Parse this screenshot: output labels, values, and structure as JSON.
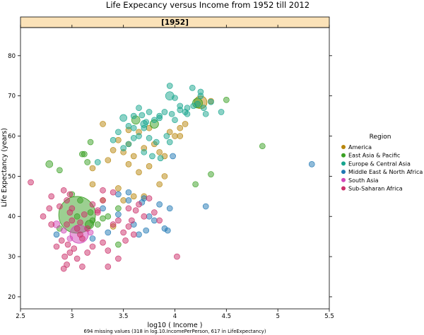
{
  "chart_data": {
    "type": "scatter",
    "title": "Life Expecancy versus Income from 1952 till 2012",
    "strip_label": "[1952]",
    "xlabel": "log10 ( Income )",
    "ylabel": "Life Expectancy (years)",
    "footnote": "694 missing values (318 in log.10.IncomePerPerson, 617 in LifeExpectancy)",
    "xlim": [
      2.5,
      5.5
    ],
    "ylim": [
      17,
      87
    ],
    "x_ticks": [
      2.5,
      3,
      3.5,
      4,
      4.5,
      5,
      5.5
    ],
    "x_tick_labels": [
      "2.5",
      "3",
      "3.5",
      "4",
      "4.5",
      "5",
      "5.5"
    ],
    "y_ticks": [
      20,
      30,
      40,
      50,
      60,
      70,
      80
    ],
    "y_tick_labels": [
      "20",
      "30",
      "40",
      "50",
      "60",
      "70",
      "80"
    ],
    "grid": false,
    "legend_title": "Region",
    "legend_position": "right",
    "colors": {
      "strip": "#fbe2b8",
      "point_alpha": 0.5
    },
    "series": [
      {
        "name": "America",
        "color": "#b8860b",
        "points": [
          [
            3.3,
            63.0
          ],
          [
            3.55,
            61.5
          ],
          [
            3.65,
            61.0
          ],
          [
            3.75,
            62.0
          ],
          [
            3.95,
            61.0
          ],
          [
            4.0,
            60.0
          ],
          [
            4.05,
            60.0
          ],
          [
            3.45,
            59.0
          ],
          [
            3.55,
            58.0
          ],
          [
            3.7,
            57.0
          ],
          [
            3.4,
            56.5
          ],
          [
            3.5,
            56.0
          ],
          [
            3.6,
            55.0
          ],
          [
            3.85,
            56.0
          ],
          [
            3.9,
            55.0
          ],
          [
            3.35,
            54.0
          ],
          [
            3.55,
            53.0
          ],
          [
            3.75,
            52.5
          ],
          [
            3.2,
            52.0
          ],
          [
            3.65,
            51.0
          ],
          [
            3.9,
            50.0
          ],
          [
            3.2,
            48.0
          ],
          [
            3.45,
            47.0
          ],
          [
            3.6,
            45.0
          ],
          [
            3.3,
            44.0
          ],
          [
            3.5,
            44.0
          ],
          [
            3.7,
            45.0
          ],
          [
            4.05,
            62.0
          ],
          [
            4.1,
            63.0
          ],
          [
            4.35,
            68.7
          ],
          [
            3.8,
            58.0
          ],
          [
            3.85,
            48.0
          ],
          [
            3.4,
            37.5
          ]
        ],
        "sizes": [
          4,
          4,
          4,
          4,
          4,
          4,
          4,
          4,
          4,
          4,
          4,
          4,
          4,
          4,
          4,
          4,
          4,
          4,
          4,
          4,
          4,
          4,
          4,
          4,
          4,
          4,
          4,
          4,
          4,
          4,
          4,
          4,
          4
        ],
        "special": [
          {
            "x": 4.25,
            "y": 68.4,
            "r": 9
          }
        ]
      },
      {
        "name": "East Asia & Pacific",
        "color": "#3aa023",
        "points": [
          [
            2.78,
            53.0
          ],
          [
            2.88,
            51.5
          ],
          [
            3.12,
            55.5
          ],
          [
            3.18,
            58.5
          ],
          [
            3.0,
            45.5
          ],
          [
            3.08,
            44.0
          ],
          [
            3.45,
            42.0
          ],
          [
            3.18,
            41.0
          ],
          [
            3.25,
            38.0
          ],
          [
            3.35,
            40.0
          ],
          [
            3.45,
            33.0
          ],
          [
            2.88,
            37.0
          ],
          [
            4.35,
            50.5
          ],
          [
            4.85,
            57.5
          ],
          [
            4.5,
            69.0
          ],
          [
            3.1,
            55.5
          ],
          [
            3.15,
            53.5
          ],
          [
            3.3,
            39.5
          ],
          [
            3.2,
            39.0
          ],
          [
            3.05,
            40.0
          ],
          [
            4.2,
            48.0
          ],
          [
            3.62,
            64.0
          ]
        ],
        "sizes": [
          5,
          4,
          4,
          4,
          4,
          4,
          4,
          4,
          4,
          4,
          4,
          4,
          4,
          4,
          4,
          4,
          4,
          4,
          4,
          4,
          4,
          6
        ],
        "special": [
          {
            "x": 3.05,
            "y": 40.4,
            "r": 26
          },
          {
            "x": 3.17,
            "y": 38.0,
            "r": 6
          },
          {
            "x": 3.8,
            "y": 63.0,
            "r": 6
          },
          {
            "x": 4.22,
            "y": 68.2,
            "r": 7
          }
        ]
      },
      {
        "name": "Europe & Central Asia",
        "color": "#17a58e",
        "points": [
          [
            3.95,
            72.5
          ],
          [
            3.95,
            70.0
          ],
          [
            4.0,
            69.5
          ],
          [
            4.05,
            67.5
          ],
          [
            4.1,
            66.0
          ],
          [
            4.12,
            67.0
          ],
          [
            4.18,
            67.5
          ],
          [
            4.22,
            68.0
          ],
          [
            4.28,
            67.0
          ],
          [
            4.35,
            68.5
          ],
          [
            4.45,
            66.0
          ],
          [
            3.9,
            66.0
          ],
          [
            3.85,
            65.0
          ],
          [
            3.8,
            64.0
          ],
          [
            3.72,
            63.5
          ],
          [
            3.7,
            62.0
          ],
          [
            3.65,
            60.0
          ],
          [
            3.6,
            62.0
          ],
          [
            3.55,
            58.0
          ],
          [
            3.5,
            57.0
          ],
          [
            3.75,
            59.5
          ],
          [
            3.82,
            58.5
          ],
          [
            3.7,
            56.0
          ],
          [
            3.78,
            55.0
          ],
          [
            3.86,
            54.5
          ],
          [
            3.92,
            60.0
          ],
          [
            3.95,
            58.5
          ],
          [
            4.0,
            64.0
          ],
          [
            3.5,
            64.5
          ],
          [
            3.6,
            65.0
          ],
          [
            3.75,
            66.0
          ],
          [
            3.55,
            62.5
          ],
          [
            3.45,
            61.0
          ],
          [
            3.65,
            67.0
          ],
          [
            4.25,
            71.0
          ],
          [
            4.3,
            65.5
          ],
          [
            3.4,
            59.0
          ],
          [
            3.6,
            59.5
          ],
          [
            3.25,
            53.5
          ],
          [
            3.85,
            64.5
          ],
          [
            4.17,
            72.0
          ],
          [
            4.12,
            65.5
          ],
          [
            4.25,
            70.0
          ],
          [
            3.7,
            63.0
          ],
          [
            3.68,
            65.2
          ],
          [
            3.97,
            65.5
          ],
          [
            4.05,
            66.5
          ]
        ],
        "sizes": [
          4,
          6,
          4,
          4,
          4,
          4,
          4,
          4,
          4,
          4,
          4,
          4,
          4,
          4,
          4,
          4,
          4,
          4,
          4,
          4,
          4,
          4,
          4,
          4,
          4,
          4,
          4,
          4,
          5,
          4,
          4,
          4,
          4,
          4,
          4,
          4,
          4,
          4,
          4,
          4,
          4,
          4,
          4,
          5,
          4,
          4,
          4
        ]
      },
      {
        "name": "Middle East & North Africa",
        "color": "#1f77b4",
        "points": [
          [
            3.45,
            45.5
          ],
          [
            3.55,
            44.0
          ],
          [
            3.7,
            44.5
          ],
          [
            3.95,
            42.0
          ],
          [
            4.3,
            42.5
          ],
          [
            3.68,
            43.5
          ],
          [
            3.75,
            40.0
          ],
          [
            3.85,
            43.0
          ],
          [
            3.9,
            37.0
          ],
          [
            3.45,
            40.5
          ],
          [
            3.6,
            38.0
          ],
          [
            3.72,
            36.5
          ],
          [
            3.8,
            39.0
          ],
          [
            3.3,
            42.0
          ],
          [
            3.2,
            34.5
          ],
          [
            3.35,
            36.0
          ],
          [
            2.85,
            35.5
          ],
          [
            5.33,
            53.0
          ],
          [
            3.93,
            36.5
          ],
          [
            3.65,
            35.5
          ],
          [
            3.55,
            46.0
          ],
          [
            3.98,
            55.0
          ]
        ],
        "sizes": [
          4,
          4,
          4,
          4,
          4,
          4,
          4,
          4,
          4,
          4,
          4,
          4,
          4,
          4,
          4,
          4,
          4,
          4,
          4,
          4,
          4,
          4
        ]
      },
      {
        "name": "South Asia",
        "color": "#d146b8",
        "points": [
          [
            2.85,
            38.0
          ],
          [
            2.92,
            36.5
          ],
          [
            2.98,
            34.5
          ],
          [
            3.18,
            36.0
          ]
        ],
        "sizes": [
          5,
          4,
          4,
          4
        ],
        "special": [
          {
            "x": 3.07,
            "y": 35.6,
            "r": 13
          }
        ]
      },
      {
        "name": "Sub-Saharan Africa",
        "color": "#cc2f6a",
        "points": [
          [
            2.6,
            48.5
          ],
          [
            2.78,
            42.0
          ],
          [
            2.88,
            42.5
          ],
          [
            2.95,
            44.0
          ],
          [
            2.98,
            41.0
          ],
          [
            3.0,
            39.0
          ],
          [
            2.95,
            38.0
          ],
          [
            3.05,
            37.0
          ],
          [
            3.08,
            35.5
          ],
          [
            2.9,
            34.0
          ],
          [
            2.96,
            33.0
          ],
          [
            3.02,
            32.0
          ],
          [
            2.98,
            31.0
          ],
          [
            2.85,
            32.5
          ],
          [
            2.72,
            40.0
          ],
          [
            2.8,
            45.0
          ],
          [
            2.92,
            46.5
          ],
          [
            3.12,
            40.5
          ],
          [
            3.2,
            43.0
          ],
          [
            3.25,
            41.5
          ],
          [
            3.3,
            44.0
          ],
          [
            3.4,
            46.0
          ],
          [
            3.55,
            42.0
          ],
          [
            3.62,
            41.5
          ],
          [
            3.75,
            44.5
          ],
          [
            3.8,
            41.0
          ],
          [
            3.7,
            40.0
          ],
          [
            3.58,
            39.0
          ],
          [
            3.4,
            38.0
          ],
          [
            3.5,
            36.0
          ],
          [
            3.3,
            33.5
          ],
          [
            3.2,
            32.5
          ],
          [
            3.15,
            31.0
          ],
          [
            3.05,
            29.5
          ],
          [
            2.95,
            28.0
          ],
          [
            2.92,
            27.0
          ],
          [
            2.93,
            30.0
          ],
          [
            3.1,
            27.5
          ],
          [
            3.35,
            27.5
          ],
          [
            3.45,
            29.5
          ],
          [
            3.52,
            34.0
          ],
          [
            3.6,
            35.5
          ],
          [
            4.02,
            30.0
          ],
          [
            2.98,
            45.5
          ],
          [
            3.0,
            42.0
          ],
          [
            3.08,
            38.5
          ],
          [
            3.15,
            37.0
          ],
          [
            3.25,
            41.0
          ],
          [
            3.45,
            39.0
          ],
          [
            3.65,
            43.0
          ],
          [
            2.8,
            38.0
          ],
          [
            3.1,
            34.5
          ],
          [
            3.35,
            31.5
          ],
          [
            3.55,
            37.5
          ],
          [
            3.85,
            39.0
          ],
          [
            3.3,
            46.5
          ]
        ],
        "sizes": [
          4,
          4,
          4,
          4,
          4,
          4,
          4,
          4,
          4,
          4,
          4,
          4,
          4,
          4,
          4,
          4,
          4,
          4,
          4,
          4,
          4,
          4,
          4,
          4,
          4,
          4,
          4,
          4,
          4,
          4,
          4,
          4,
          4,
          4,
          4,
          4,
          4,
          4,
          4,
          4,
          4,
          4,
          4,
          4,
          4,
          4,
          4,
          4,
          4,
          4,
          4,
          4,
          4,
          4,
          4,
          4
        ]
      }
    ]
  }
}
